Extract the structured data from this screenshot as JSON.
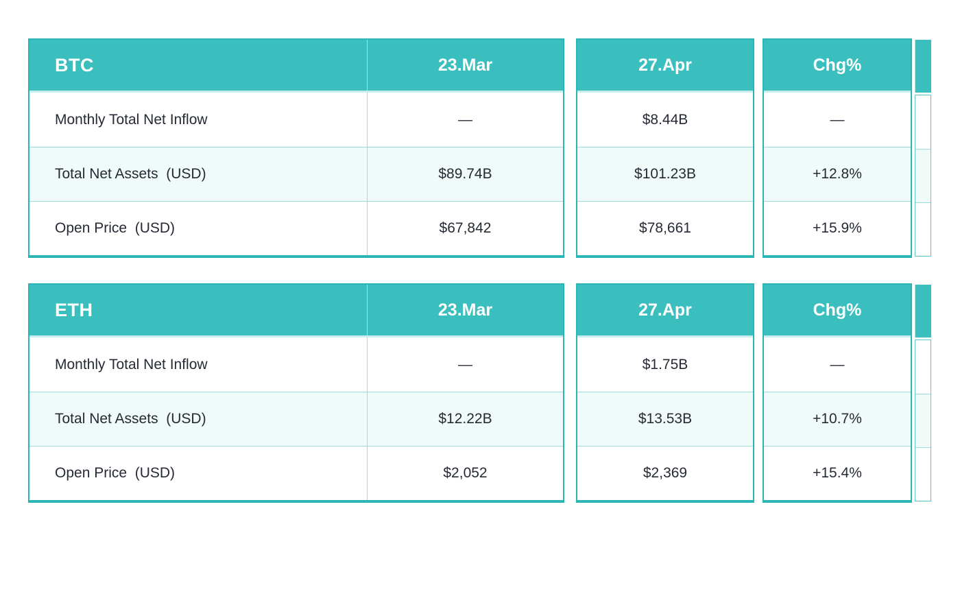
{
  "colors": {
    "header_teal": "#3bbebe",
    "panel_border_teal": "#2cb5b5",
    "row_divider_teal": "#9adedb",
    "row_alt_mint": "#f0faf8",
    "row_white": "#ffffff",
    "header_text": "#ffffff",
    "body_text": "#252a34"
  },
  "tables": [
    {
      "id": "btc",
      "title": "BTC",
      "columns": [
        "23.Mar",
        "27.Apr",
        "Chg%"
      ],
      "rows": [
        {
          "label": "Monthly Total Net Inflow",
          "values": [
            "—",
            "$8.44B",
            "—"
          ]
        },
        {
          "label": "Total Net Assets  (USD)",
          "values": [
            "$89.74B",
            "$101.23B",
            "+12.8%"
          ]
        },
        {
          "label": "Open Price  (USD)",
          "values": [
            "$67,842",
            "$78,661",
            "+15.9%"
          ]
        }
      ]
    },
    {
      "id": "eth",
      "title": "ETH",
      "columns": [
        "23.Mar",
        "27.Apr",
        "Chg%"
      ],
      "rows": [
        {
          "label": "Monthly Total Net Inflow",
          "values": [
            "—",
            "$1.75B",
            "—"
          ]
        },
        {
          "label": "Total Net Assets  (USD)",
          "values": [
            "$12.22B",
            "$13.53B",
            "+10.7%"
          ]
        },
        {
          "label": "Open Price  (USD)",
          "values": [
            "$2,052",
            "$2,369",
            "+15.4%"
          ]
        }
      ]
    }
  ]
}
